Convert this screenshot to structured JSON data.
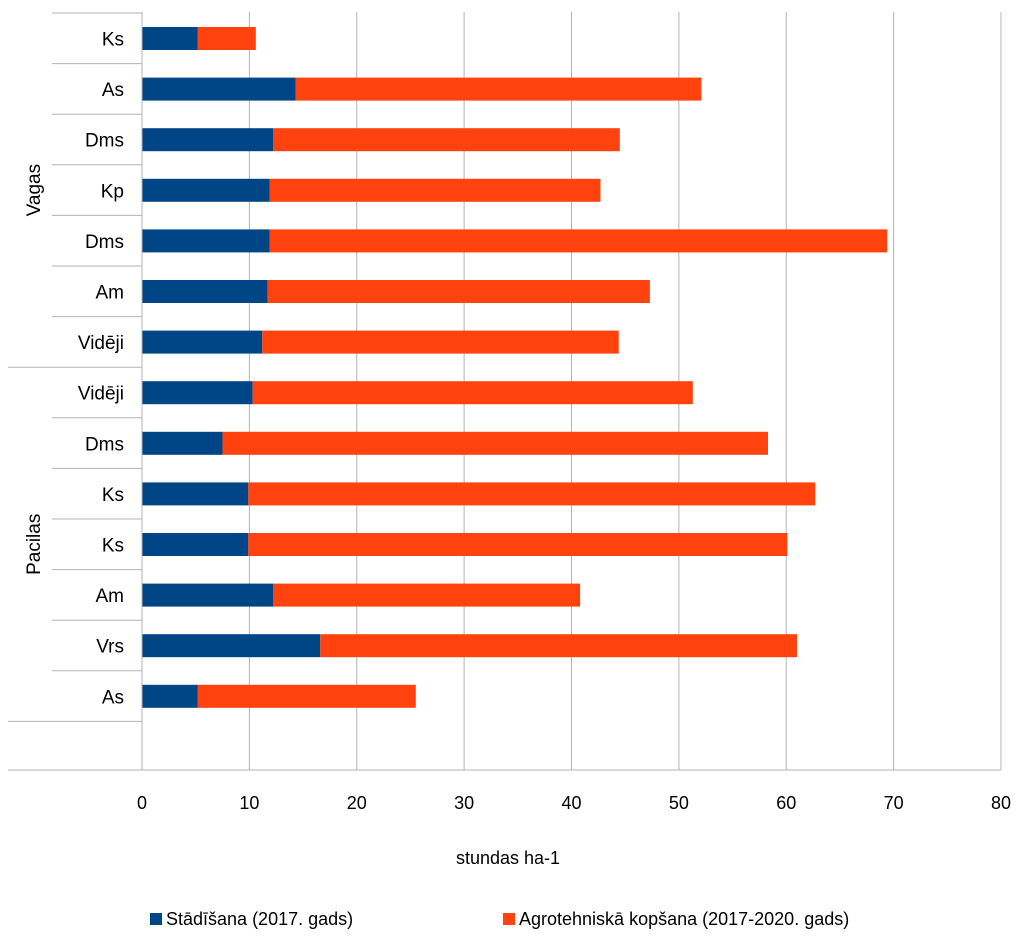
{
  "chart_data": {
    "type": "bar",
    "orientation": "horizontal",
    "stacked": true,
    "groups": [
      {
        "label": "Vagas",
        "categories": [
          "Ks",
          "As",
          "Dms",
          "Kp",
          "Dms",
          "Am",
          "Vidēji"
        ]
      },
      {
        "label": "Pacilas",
        "categories": [
          "Vidēji",
          "Dms",
          "Ks",
          "Ks",
          "Am",
          "Vrs",
          "As"
        ]
      }
    ],
    "categories": [
      "Ks",
      "As",
      "Dms",
      "Kp",
      "Dms",
      "Am",
      "Vidēji",
      "Vidēji",
      "Dms",
      "Ks",
      "Ks",
      "Am",
      "Vrs",
      "As"
    ],
    "series": [
      {
        "name": "Stādīšana (2017. gads)",
        "color": "#004586",
        "values": [
          5.2,
          14.3,
          12.2,
          11.9,
          11.9,
          11.7,
          11.2,
          10.3,
          7.5,
          9.9,
          9.9,
          12.2,
          16.6,
          5.2
        ]
      },
      {
        "name": "Agrotehniskā kopšana (2017-2020. gads)",
        "color": "#ff420e",
        "values": [
          5.4,
          37.8,
          32.3,
          30.8,
          57.5,
          35.6,
          33.2,
          41.0,
          50.8,
          52.8,
          50.2,
          28.6,
          44.4,
          20.3
        ]
      }
    ],
    "xlabel": "stundas ha-1",
    "xlim": [
      0,
      80
    ],
    "xticks": [
      0,
      10,
      20,
      30,
      40,
      50,
      60,
      70,
      80
    ],
    "grid": true,
    "legend_position": "bottom"
  }
}
